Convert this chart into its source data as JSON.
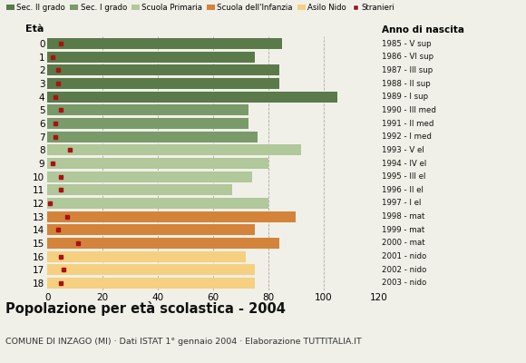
{
  "ages": [
    18,
    17,
    16,
    15,
    14,
    13,
    12,
    11,
    10,
    9,
    8,
    7,
    6,
    5,
    4,
    3,
    2,
    1,
    0
  ],
  "values": [
    85,
    75,
    84,
    84,
    105,
    73,
    73,
    76,
    92,
    80,
    74,
    67,
    80,
    90,
    75,
    84,
    72,
    75,
    75
  ],
  "stranieri": [
    5,
    2,
    4,
    4,
    3,
    5,
    3,
    3,
    8,
    2,
    5,
    5,
    1,
    7,
    4,
    11,
    5,
    6,
    5
  ],
  "anno_nascita": [
    "1985 - V sup",
    "1986 - VI sup",
    "1987 - III sup",
    "1988 - II sup",
    "1989 - I sup",
    "1990 - III med",
    "1991 - II med",
    "1992 - I med",
    "1993 - V el",
    "1994 - IV el",
    "1995 - III el",
    "1996 - II el",
    "1997 - I el",
    "1998 - mat",
    "1999 - mat",
    "2000 - mat",
    "2001 - nido",
    "2002 - nido",
    "2003 - nido"
  ],
  "bar_colors": [
    "#5a7a4a",
    "#5a7a4a",
    "#5a7a4a",
    "#5a7a4a",
    "#5a7a4a",
    "#7a9a6a",
    "#7a9a6a",
    "#7a9a6a",
    "#b0c89a",
    "#b0c89a",
    "#b0c89a",
    "#b0c89a",
    "#b0c89a",
    "#d4833a",
    "#d4833a",
    "#d4833a",
    "#f5d080",
    "#f5d080",
    "#f5d080"
  ],
  "stranieri_color": "#aa1111",
  "legend_labels": [
    "Sec. II grado",
    "Sec. I grado",
    "Scuola Primaria",
    "Scuola dell'Infanzia",
    "Asilo Nido",
    "Stranieri"
  ],
  "legend_colors": [
    "#5a7a4a",
    "#7a9a6a",
    "#b0c89a",
    "#d4833a",
    "#f5d080",
    "#aa1111"
  ],
  "title": "Popolazione per età scolastica - 2004",
  "subtitle": "COMUNE DI INZAGO (MI) · Dati ISTAT 1° gennaio 2004 · Elaborazione TUTTITALIA.IT",
  "xlabel_eta": "Età",
  "xlabel_anno": "Anno di nascita",
  "xlim": [
    0,
    120
  ],
  "xticks": [
    0,
    20,
    40,
    60,
    80,
    100,
    120
  ],
  "background_color": "#f0f0e8",
  "plot_bg": "#f0f0e8"
}
